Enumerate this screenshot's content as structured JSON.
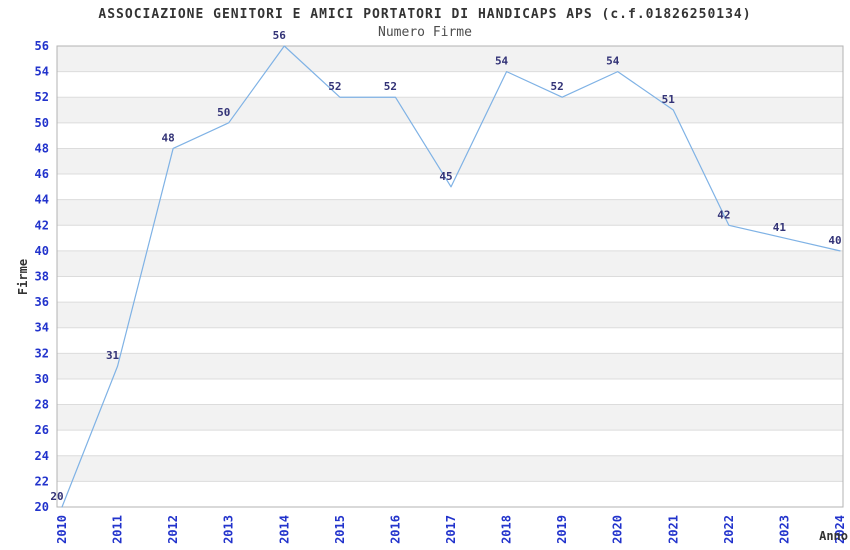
{
  "header": {
    "title": "ASSOCIAZIONE GENITORI E AMICI PORTATORI DI HANDICAPS APS (c.f.01826250134)",
    "subtitle": "Numero Firme"
  },
  "chart_data": {
    "type": "line",
    "title": "Numero Firme",
    "xlabel": "Anno",
    "ylabel": "Firme",
    "categories": [
      "2010",
      "2011",
      "2012",
      "2013",
      "2014",
      "2015",
      "2016",
      "2017",
      "2018",
      "2019",
      "2020",
      "2021",
      "2022",
      "2023",
      "2024"
    ],
    "series": [
      {
        "name": "Numero Firme",
        "values": [
          20,
          31,
          48,
          50,
          56,
          52,
          52,
          45,
          54,
          52,
          54,
          51,
          42,
          41,
          40
        ]
      }
    ],
    "ylim": [
      20,
      56
    ],
    "ytick_step": 2,
    "grid": true,
    "legend": "none",
    "data_labels": true,
    "colors": {
      "line": "#7fb2e5",
      "tick_label": "#2233cc",
      "data_label": "#333377",
      "title": "#333333",
      "subtitle": "#4d4d4d",
      "axis_title": "#333333",
      "band": "#f2f2f2",
      "gridline": "#dcdcdc",
      "border": "#b3b3b3",
      "background": "#ffffff"
    }
  }
}
